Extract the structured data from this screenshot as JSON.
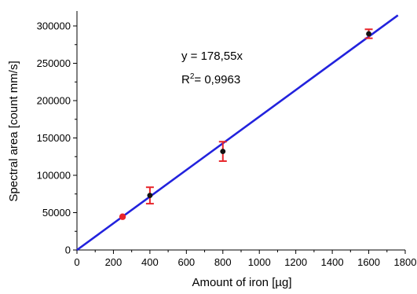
{
  "chart_data": {
    "type": "scatter",
    "xlabel": "Amount of iron [µg]",
    "ylabel": "Spectral area [count mm/s]",
    "xlim": [
      0,
      1800
    ],
    "ylim": [
      0,
      320000
    ],
    "x_ticks": [
      0,
      200,
      400,
      600,
      800,
      1000,
      1200,
      1400,
      1600,
      1800
    ],
    "y_ticks": [
      0,
      50000,
      100000,
      150000,
      200000,
      250000,
      300000
    ],
    "grid": false,
    "fit_line": {
      "slope": 178.55,
      "x_range": [
        0,
        1760
      ],
      "color": "#2222dd",
      "equation": "y = 178,55x",
      "r2_prefix": "R",
      "r2_sup": "2",
      "r2_value": "= 0,9963"
    },
    "points": [
      {
        "x": 250,
        "y": 44500,
        "err": 2000,
        "color": "#e8242a"
      },
      {
        "x": 400,
        "y": 73000,
        "err": 11000,
        "color": "#111111"
      },
      {
        "x": 800,
        "y": 132000,
        "err": 13000,
        "color": "#111111"
      },
      {
        "x": 1600,
        "y": 289500,
        "err": 6000,
        "color": "#111111"
      }
    ],
    "error_bar_color": "#e8242a"
  }
}
